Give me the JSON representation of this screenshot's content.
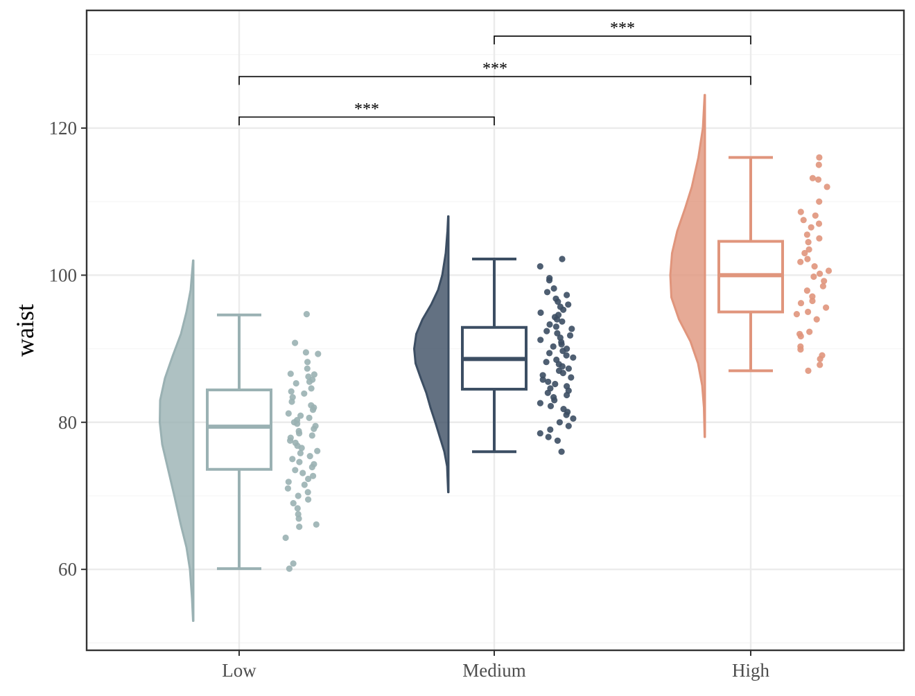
{
  "chart_data": {
    "type": "raincloud",
    "title": "",
    "xlabel": "",
    "ylabel": "waist",
    "categories": [
      "Low",
      "Medium",
      "High"
    ],
    "yticks": [
      60,
      80,
      100,
      120
    ],
    "ylim": [
      49,
      136
    ],
    "grid": true,
    "legend": "none",
    "colors": {
      "Low": "#9AB1B3",
      "Medium": "#3C4E63",
      "High": "#E0957C",
      "grid_major": "#EBEBEB",
      "grid_minor": "#F5F5F5",
      "panel_border": "#333333"
    },
    "boxplots": [
      {
        "category": "Low",
        "whisker_low": 60.1,
        "q1": 73.6,
        "median": 79.4,
        "q3": 84.4,
        "whisker_high": 94.6
      },
      {
        "category": "Medium",
        "whisker_low": 76.0,
        "q1": 84.5,
        "median": 88.6,
        "q3": 92.9,
        "whisker_high": 102.2
      },
      {
        "category": "High",
        "whisker_low": 87.0,
        "q1": 95.0,
        "median": 100.0,
        "q3": 104.6,
        "whisker_high": 116.0
      }
    ],
    "densities": [
      {
        "category": "Low",
        "profile": [
          [
            53,
            0.01
          ],
          [
            56,
            0.04
          ],
          [
            60,
            0.1
          ],
          [
            63,
            0.2
          ],
          [
            66,
            0.36
          ],
          [
            70,
            0.55
          ],
          [
            74,
            0.75
          ],
          [
            77,
            0.9
          ],
          [
            80,
            0.97
          ],
          [
            83,
            0.96
          ],
          [
            86,
            0.82
          ],
          [
            89,
            0.6
          ],
          [
            92,
            0.36
          ],
          [
            95,
            0.2
          ],
          [
            98,
            0.08
          ],
          [
            102,
            0.01
          ]
        ]
      },
      {
        "category": "Medium",
        "profile": [
          [
            70.5,
            0.01
          ],
          [
            74,
            0.04
          ],
          [
            76,
            0.12
          ],
          [
            78,
            0.25
          ],
          [
            80,
            0.38
          ],
          [
            82,
            0.52
          ],
          [
            84,
            0.64
          ],
          [
            86,
            0.8
          ],
          [
            88,
            0.95
          ],
          [
            90,
            0.99
          ],
          [
            92,
            0.93
          ],
          [
            94,
            0.75
          ],
          [
            96,
            0.5
          ],
          [
            98,
            0.3
          ],
          [
            100,
            0.18
          ],
          [
            103,
            0.08
          ],
          [
            106,
            0.03
          ],
          [
            108,
            0.01
          ]
        ]
      },
      {
        "category": "High",
        "profile": [
          [
            78,
            0.01
          ],
          [
            82,
            0.03
          ],
          [
            85,
            0.08
          ],
          [
            88,
            0.2
          ],
          [
            91,
            0.42
          ],
          [
            94,
            0.75
          ],
          [
            97,
            0.97
          ],
          [
            100,
            1.0
          ],
          [
            103,
            0.95
          ],
          [
            106,
            0.8
          ],
          [
            109,
            0.58
          ],
          [
            112,
            0.38
          ],
          [
            116,
            0.19
          ],
          [
            120,
            0.06
          ],
          [
            124.5,
            0.01
          ]
        ]
      }
    ],
    "points": [
      {
        "category": "Low",
        "y": [
          94.7,
          90.8,
          89.5,
          89.3,
          88.2,
          87.3,
          86.6,
          86.5,
          86.2,
          85.8,
          85.5,
          85.3,
          84.6,
          84.2,
          83.9,
          83.4,
          82.8,
          82.3,
          82.0,
          81.7,
          81.2,
          80.9,
          80.6,
          80.3,
          80.0,
          79.8,
          79.5,
          79.1,
          78.8,
          78.5,
          78.2,
          77.9,
          77.5,
          77.2,
          76.8,
          76.5,
          76.1,
          75.8,
          75.4,
          75.0,
          74.6,
          74.3,
          73.9,
          73.5,
          73.1,
          72.7,
          72.3,
          71.9,
          71.5,
          71.0,
          70.5,
          70.0,
          69.5,
          69.0,
          68.3,
          67.5,
          66.9,
          66.1,
          65.8,
          64.3,
          60.8,
          60.1
        ]
      },
      {
        "category": "Medium",
        "y": [
          102.2,
          101.2,
          99.6,
          99.3,
          98.2,
          97.7,
          97.3,
          96.8,
          96.4,
          96.0,
          95.7,
          95.3,
          94.9,
          94.6,
          94.3,
          94.0,
          93.7,
          93.3,
          93.0,
          92.7,
          92.4,
          92.1,
          91.8,
          91.5,
          91.2,
          90.9,
          90.6,
          90.3,
          90.0,
          89.7,
          89.4,
          89.1,
          88.8,
          88.5,
          88.2,
          87.9,
          87.6,
          87.3,
          87.0,
          86.7,
          86.4,
          86.1,
          85.8,
          85.5,
          85.2,
          84.9,
          84.6,
          84.3,
          84.0,
          83.7,
          83.4,
          83.0,
          82.6,
          82.2,
          81.8,
          81.4,
          81.0,
          80.5,
          80.0,
          79.5,
          79.0,
          78.5,
          78.0,
          77.5,
          76.0
        ]
      },
      {
        "category": "High",
        "y": [
          116.0,
          115.0,
          113.2,
          113.0,
          112.0,
          110.0,
          108.6,
          108.1,
          107.5,
          107.0,
          106.5,
          105.5,
          105.0,
          104.5,
          103.5,
          103.0,
          102.2,
          101.8,
          101.2,
          100.6,
          100.2,
          99.8,
          99.2,
          98.5,
          97.9,
          97.1,
          96.5,
          96.2,
          95.6,
          95.0,
          94.7,
          94.0,
          92.3,
          92.0,
          91.7,
          90.3,
          89.9,
          89.1,
          88.6,
          87.8,
          87.0
        ]
      }
    ],
    "significance": [
      {
        "from": "Low",
        "to": "Medium",
        "label": "***",
        "y": 121.5
      },
      {
        "from": "Low",
        "to": "High",
        "label": "***",
        "y": 127
      },
      {
        "from": "Medium",
        "to": "High",
        "label": "***",
        "y": 132.5
      }
    ]
  }
}
